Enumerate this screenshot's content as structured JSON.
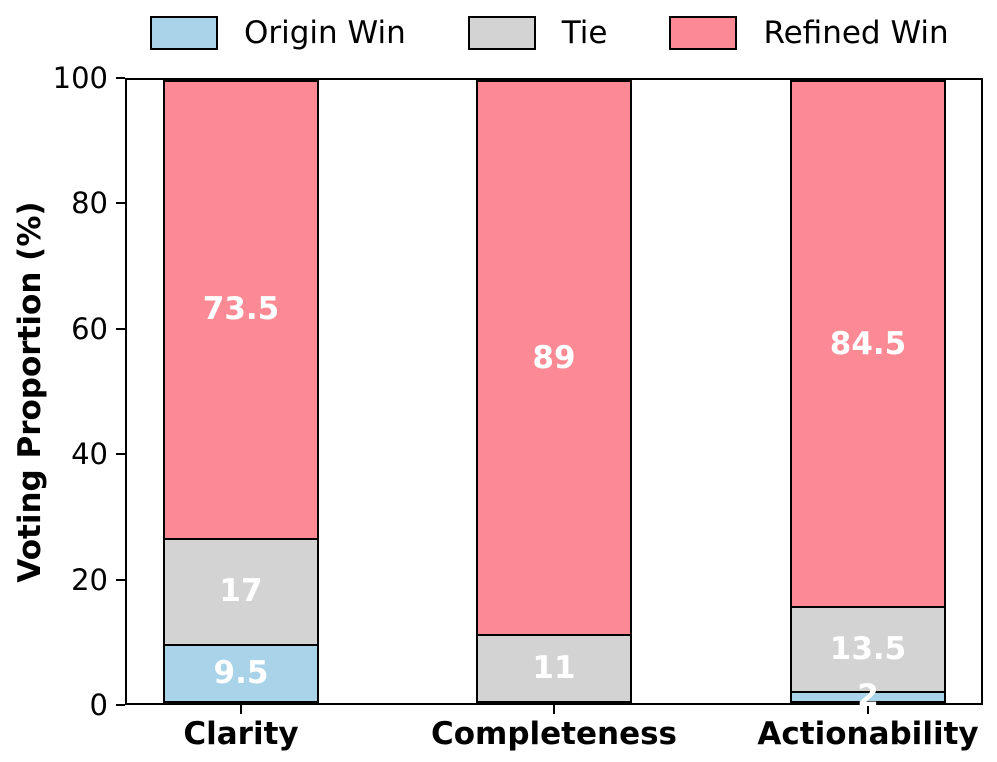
{
  "legend": {
    "items": [
      {
        "label": "Origin Win",
        "color": "#A9D3E8"
      },
      {
        "label": "Tie",
        "color": "#D3D3D3"
      },
      {
        "label": "Refined Win",
        "color": "#FC8A94"
      }
    ]
  },
  "chart_data": {
    "type": "bar",
    "stacked": true,
    "categories": [
      "Clarity",
      "Completeness",
      "Actionability"
    ],
    "series": [
      {
        "name": "Origin Win",
        "color": "#A9D3E8",
        "values": [
          9.5,
          0,
          2
        ]
      },
      {
        "name": "Tie",
        "color": "#D3D3D3",
        "values": [
          17,
          11,
          13.5
        ]
      },
      {
        "name": "Refined Win",
        "color": "#FC8A94",
        "values": [
          73.5,
          89,
          84.5
        ]
      }
    ],
    "bar_labels": [
      [
        "9.5",
        "17",
        "73.5"
      ],
      [
        "",
        "11",
        "89"
      ],
      [
        "2",
        "13.5",
        "84.5"
      ]
    ],
    "bar_label_color": "#ffffff",
    "edge_color": "#000000",
    "title": "",
    "xlabel": "",
    "ylabel": "Voting Proportion (%)",
    "ylim": [
      0,
      100
    ],
    "yticks": [
      0,
      20,
      40,
      60,
      80,
      100
    ],
    "grid": false,
    "legend_position": "top"
  }
}
